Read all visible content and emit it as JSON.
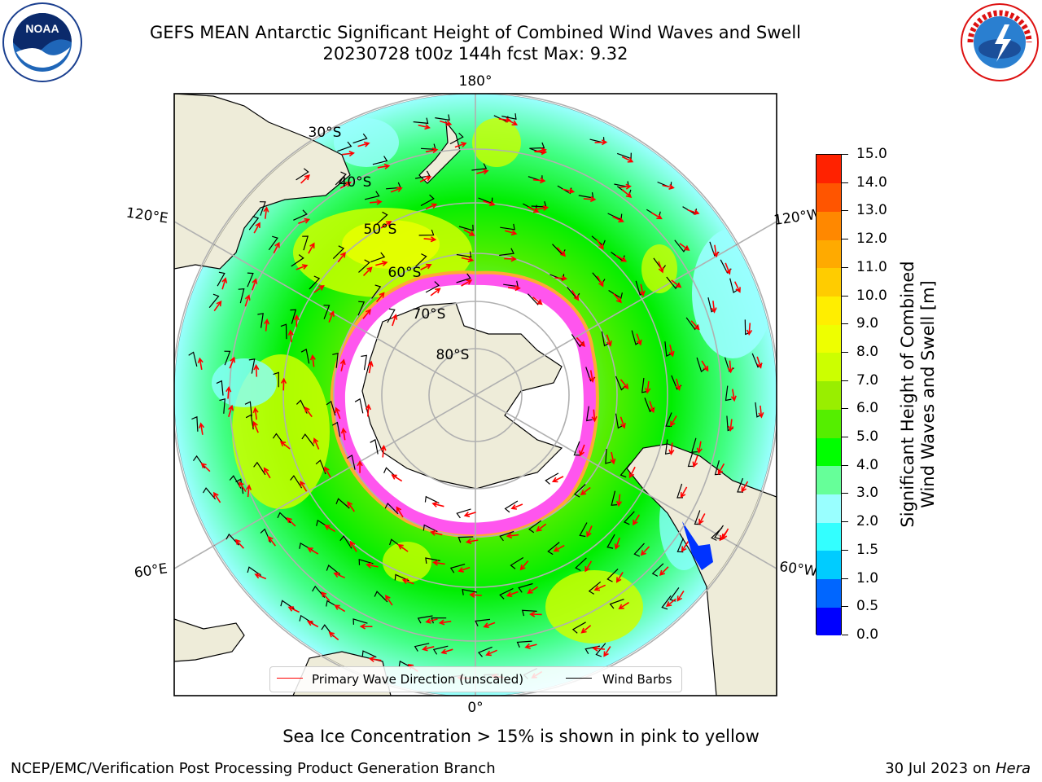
{
  "header": {
    "title_line1": "GEFS MEAN Antarctic Significant Height of Combined Wind Waves and Swell",
    "title_line2": "20230728 t00z 144h fcst   Max: 9.32"
  },
  "logos": {
    "left": {
      "name": "noaa-logo",
      "text": "NOAA"
    },
    "right": {
      "name": "nws-logo",
      "text": "NATIONAL WEATHER SERVICE"
    }
  },
  "map": {
    "projection": "south-polar-stereographic",
    "longitude_labels": {
      "top": "180°",
      "bottom": "0°",
      "left_upper": "120°E",
      "left_lower": "60°E",
      "right_upper": "120°W",
      "right_lower": "60°W"
    },
    "latitude_labels": [
      "30°S",
      "40°S",
      "50°S",
      "60°S",
      "70°S",
      "80°S"
    ],
    "colors": {
      "land": "#eeecd9",
      "ocean_low": "#88ffff",
      "ocean_mid": "#00f000",
      "ocean_high": "#f0ff00",
      "ice": "#ff66ff",
      "wave_arrow": "#ff0000",
      "wind_barb": "#000000"
    }
  },
  "legend": {
    "wave_label": "Primary Wave Direction (unscaled)",
    "wind_label": "Wind Barbs"
  },
  "colorbar": {
    "title_line1": "Significant Height of Combined",
    "title_line2": "Wind Waves and Swell [m]",
    "ticks": [
      "0.0",
      "0.5",
      "1.0",
      "1.5",
      "2.0",
      "3.0",
      "4.0",
      "5.0",
      "6.0",
      "7.0",
      "8.0",
      "9.0",
      "10.0",
      "11.0",
      "12.0",
      "13.0",
      "14.0",
      "15.0"
    ],
    "colors": [
      "#0000ff",
      "#0066ff",
      "#00ccff",
      "#33ffff",
      "#99ffff",
      "#66ff99",
      "#00ff00",
      "#55ee00",
      "#99ee00",
      "#ccff00",
      "#eeff00",
      "#ffee00",
      "#ffcc00",
      "#ffaa00",
      "#ff8800",
      "#ff5500",
      "#ff2200"
    ]
  },
  "footer": {
    "ice_note": "Sea Ice Concentration > 15% is shown in pink to yellow",
    "credit_left": "NCEP/EMC/Verification Post Processing Product Generation Branch",
    "credit_right_prefix": "30 Jul 2023 on ",
    "credit_right_host": "Hera"
  }
}
